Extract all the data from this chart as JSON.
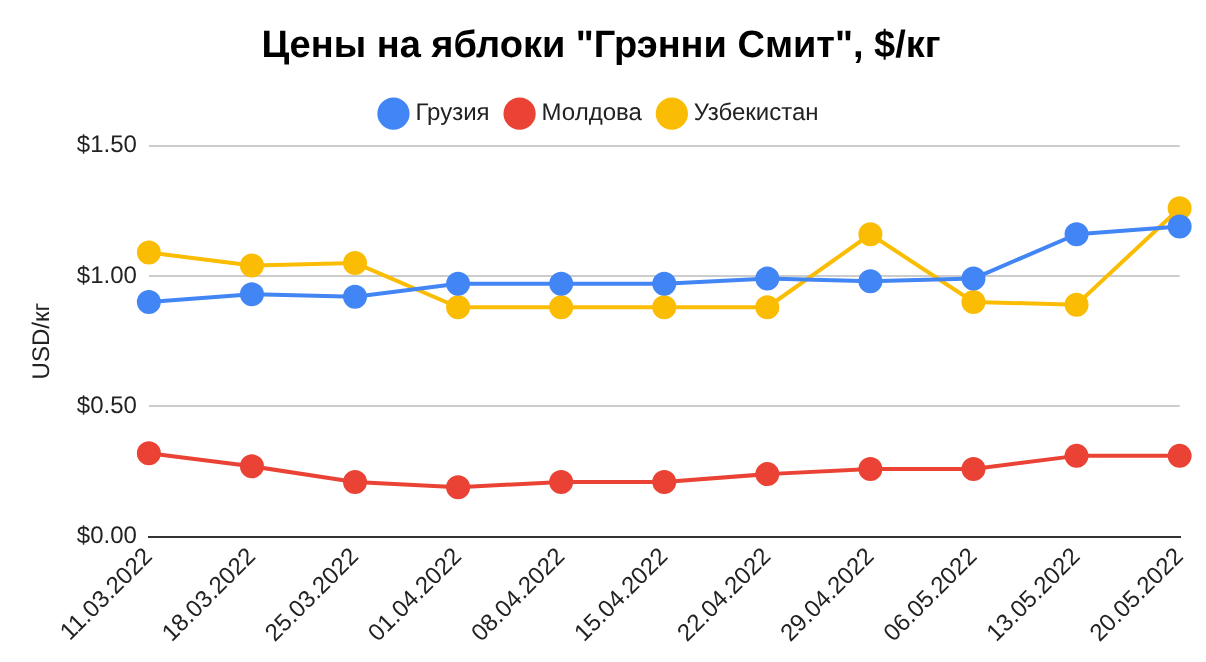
{
  "chart_data": {
    "type": "line",
    "title": "Цены на яблоки \"Грэнни Смит\", $/кг",
    "ylabel": "USD/кг",
    "categories": [
      "11.03.2022",
      "18.03.2022",
      "25.03.2022",
      "01.04.2022",
      "08.04.2022",
      "15.04.2022",
      "22.04.2022",
      "29.04.2022",
      "06.05.2022",
      "13.05.2022",
      "20.05.2022"
    ],
    "series": [
      {
        "name": "Грузия",
        "color": "#4285f4",
        "values": [
          0.9,
          0.93,
          0.92,
          0.97,
          0.97,
          0.97,
          0.99,
          0.98,
          0.99,
          1.16,
          1.19
        ]
      },
      {
        "name": "Молдова",
        "color": "#ea4335",
        "values": [
          0.32,
          0.27,
          0.21,
          0.19,
          0.21,
          0.21,
          0.24,
          0.26,
          0.26,
          0.31,
          0.31
        ]
      },
      {
        "name": "Узбекистан",
        "color": "#fbbc04",
        "values": [
          1.09,
          1.04,
          1.05,
          0.88,
          0.88,
          0.88,
          0.88,
          1.16,
          0.9,
          0.89,
          1.26
        ]
      }
    ],
    "ylim": [
      0,
      1.5
    ],
    "yticks": [
      {
        "value": 0,
        "label": "$0.00"
      },
      {
        "value": 0.5,
        "label": "$0.50"
      },
      {
        "value": 1,
        "label": "$1.00"
      },
      {
        "value": 1.5,
        "label": "$1.50"
      }
    ],
    "grid": "y",
    "legend": "top",
    "marker": "circle",
    "line_style": "solid"
  }
}
